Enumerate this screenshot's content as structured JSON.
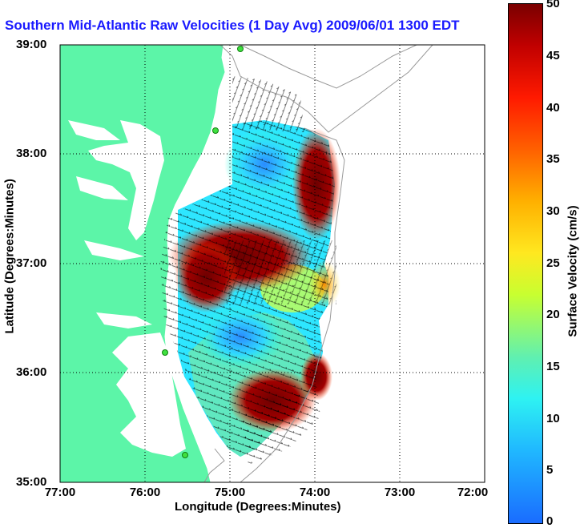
{
  "title": "Southern Mid-Atlantic Raw Velocities (1 Day Avg) 2009/06/01 1300 EDT",
  "map": {
    "latitude_ticks": [
      "39:00",
      "38:00",
      "37:00",
      "36:00",
      "35:00"
    ],
    "longitude_ticks": [
      "77:00",
      "76:00",
      "75:00",
      "74:00",
      "73:00",
      "72:00"
    ],
    "xlabel": "Longitude (Degrees:Minutes)",
    "ylabel": "Latitude (Degrees:Minutes)",
    "lat_range": [
      35,
      39
    ],
    "lon_range": [
      -77,
      -72
    ],
    "land_color": "#5cf5a8",
    "station_color": "#40e040"
  },
  "colorbar": {
    "label": "Surface Velocity (cm/s)",
    "ticks": [
      "50",
      "45",
      "40",
      "35",
      "30",
      "25",
      "20",
      "15",
      "10",
      "5",
      "0"
    ],
    "range": [
      0,
      50
    ],
    "colors": [
      "#1a6cff",
      "#2ef2f2",
      "#c8ff30",
      "#ffe820",
      "#ff6000",
      "#ff1a00",
      "#7a0000"
    ]
  }
}
